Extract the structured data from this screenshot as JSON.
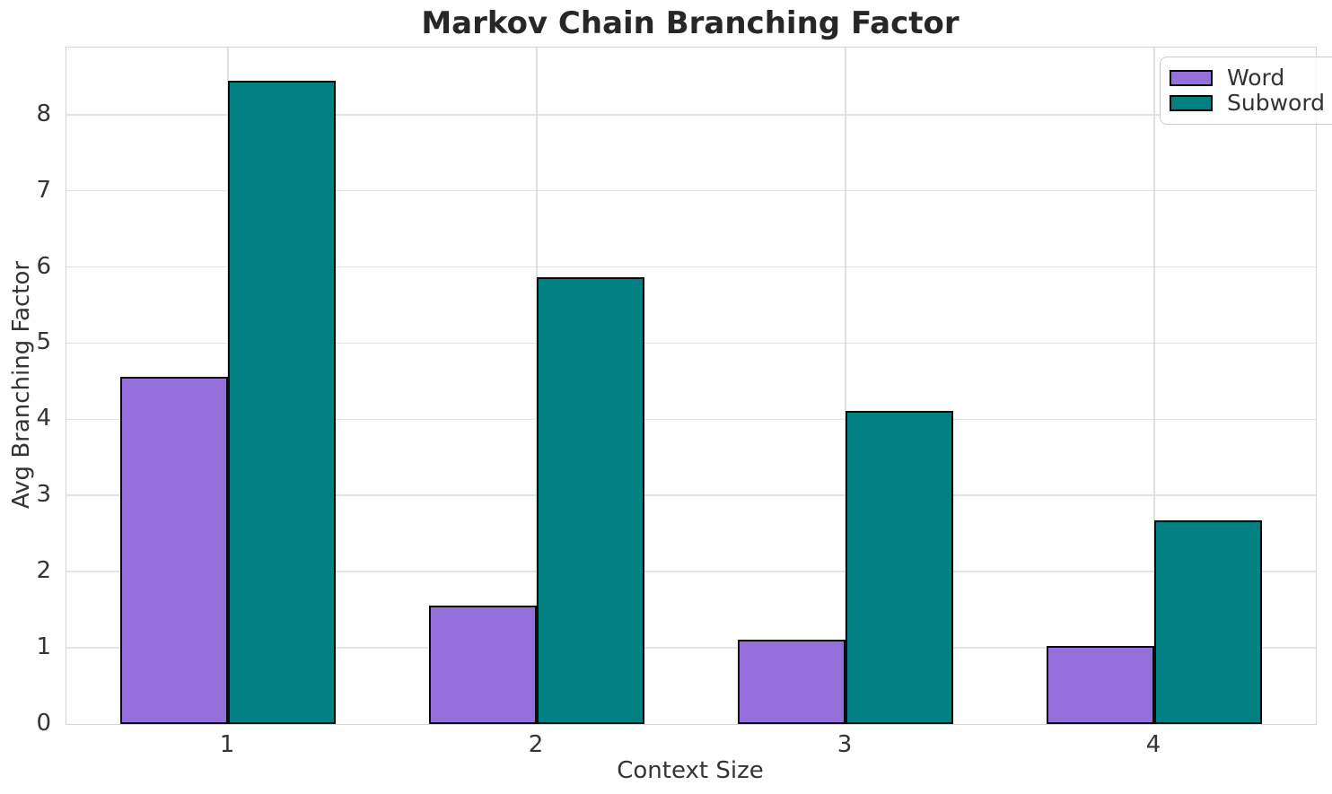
{
  "title": "Markov Chain Branching Factor",
  "chart_data": {
    "type": "bar",
    "title": "Markov Chain Branching Factor",
    "xlabel": "Context Size",
    "ylabel": "Avg Branching Factor",
    "categories": [
      "1",
      "2",
      "3",
      "4"
    ],
    "series": [
      {
        "name": "Word",
        "color": "#9370db",
        "values": [
          4.56,
          1.55,
          1.11,
          1.03
        ]
      },
      {
        "name": "Subword",
        "color": "#008080",
        "values": [
          8.45,
          5.87,
          4.11,
          2.67
        ]
      }
    ],
    "ylim": [
      0,
      8.88
    ],
    "yticks": [
      0,
      1,
      2,
      3,
      4,
      5,
      6,
      7,
      8
    ],
    "grid": true,
    "legend_position": "upper right",
    "bar_edge_color": "#000000",
    "background_color": "#ffffff"
  },
  "legend": {
    "items": [
      {
        "label": "Word",
        "color": "#9370db"
      },
      {
        "label": "Subword",
        "color": "#008080"
      }
    ]
  }
}
